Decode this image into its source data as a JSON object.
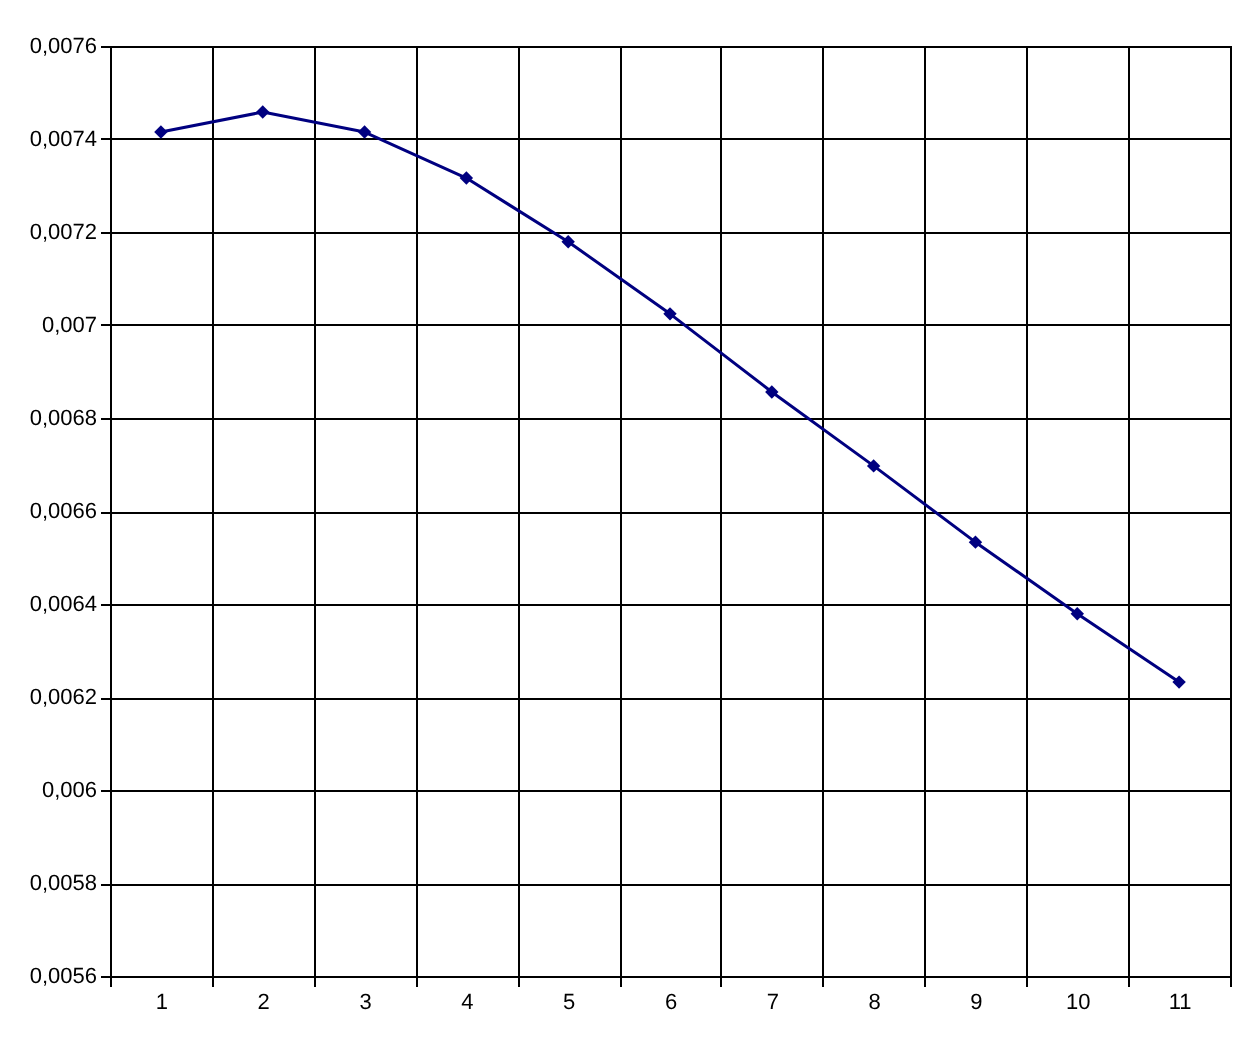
{
  "chart_data": {
    "type": "line",
    "categories": [
      "1",
      "2",
      "3",
      "4",
      "5",
      "6",
      "7",
      "8",
      "9",
      "10",
      "11"
    ],
    "series": [
      {
        "color": "#000080",
        "values": [
          0.007415,
          0.007458,
          0.007415,
          0.007316,
          0.007179,
          0.007024,
          0.006856,
          0.006697,
          0.006533,
          0.006379,
          0.006232
        ]
      }
    ],
    "ylim": [
      0.0056,
      0.0076
    ],
    "yticks": [
      {
        "value": 0.0056,
        "label": "0,0056"
      },
      {
        "value": 0.0058,
        "label": "0,0058"
      },
      {
        "value": 0.006,
        "label": "0,006"
      },
      {
        "value": 0.0062,
        "label": "0,0062"
      },
      {
        "value": 0.0064,
        "label": "0,0064"
      },
      {
        "value": 0.0066,
        "label": "0,0066"
      },
      {
        "value": 0.0068,
        "label": "0,0068"
      },
      {
        "value": 0.007,
        "label": "0,007"
      },
      {
        "value": 0.0072,
        "label": "0,0072"
      },
      {
        "value": 0.0074,
        "label": "0,0074"
      },
      {
        "value": 0.0076,
        "label": "0,0076"
      }
    ],
    "grid": true,
    "marker": "diamond",
    "line_style": "solid",
    "legend": false
  }
}
